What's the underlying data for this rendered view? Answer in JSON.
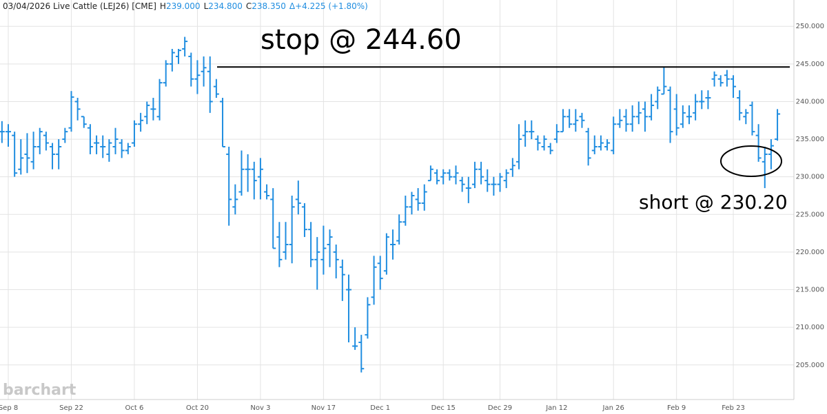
{
  "chart_data": {
    "type": "ohlc",
    "header": {
      "title": "03/04/2026 Live Cattle (LEJ26) [CME]",
      "items": [
        {
          "key": "H",
          "value": "239.000"
        },
        {
          "key": "L",
          "value": "234.800"
        },
        {
          "key": "C",
          "value": "238.350"
        }
      ],
      "change": "Δ+4.225 (+1.80%)"
    },
    "watermark": "barchart",
    "annotations": {
      "stop_text": "stop @ 244.60",
      "stop_level": 244.6,
      "short_text": "short @ 230.20"
    },
    "color": "#1f8de0",
    "ylim": [
      200.4,
      253.5
    ],
    "yticks": [
      {
        "value": 205,
        "label": "205.000"
      },
      {
        "value": 210,
        "label": "210.000"
      },
      {
        "value": 215,
        "label": "215.000"
      },
      {
        "value": 220,
        "label": "220.000"
      },
      {
        "value": 225,
        "label": "225.000"
      },
      {
        "value": 230,
        "label": "230.000"
      },
      {
        "value": 235,
        "label": "235.000"
      },
      {
        "value": 240,
        "label": "240.000"
      },
      {
        "value": 245,
        "label": "245.000"
      },
      {
        "value": 250,
        "label": "250.000"
      }
    ],
    "grid": true,
    "categories": [
      null,
      "Sep 8",
      null,
      null,
      null,
      null,
      null,
      null,
      null,
      null,
      null,
      "Sep 22",
      null,
      null,
      null,
      null,
      null,
      null,
      null,
      null,
      null,
      "Oct 6",
      null,
      null,
      null,
      null,
      null,
      null,
      null,
      null,
      null,
      "Oct 20",
      null,
      null,
      null,
      null,
      null,
      null,
      null,
      null,
      null,
      "Nov 3",
      null,
      null,
      null,
      null,
      null,
      null,
      null,
      null,
      null,
      "Nov 17",
      null,
      null,
      null,
      null,
      null,
      null,
      null,
      null,
      "Dec 1",
      null,
      null,
      null,
      null,
      null,
      null,
      null,
      null,
      null,
      "Dec 15",
      null,
      null,
      null,
      null,
      null,
      null,
      null,
      null,
      "Dec 29",
      null,
      null,
      null,
      null,
      null,
      null,
      null,
      null,
      "Jan 12",
      null,
      null,
      null,
      null,
      null,
      null,
      null,
      null,
      "Jan 26",
      null,
      null,
      null,
      null,
      null,
      null,
      null,
      null,
      null,
      "Feb 9",
      null,
      null,
      null,
      null,
      null,
      null,
      null,
      null,
      "Feb 23",
      null,
      null,
      null,
      null,
      null,
      null,
      null
    ],
    "open": [
      236,
      236,
      235.5,
      231,
      233,
      232,
      234,
      235.5,
      234,
      233,
      235,
      236.5,
      240,
      238,
      236.5,
      234.5,
      234,
      233,
      234,
      234.5,
      233.5,
      234.5,
      237,
      238,
      239,
      238,
      242.5,
      245,
      246,
      247,
      246,
      243,
      244,
      244,
      242,
      240,
      233,
      226,
      228,
      231,
      231,
      230,
      228,
      227,
      222,
      220,
      221,
      227,
      226,
      223,
      219,
      219,
      221,
      220,
      218,
      215,
      207.5,
      208,
      209,
      214,
      218.5,
      217.5,
      221,
      221.5,
      224,
      226,
      227,
      226.5,
      229.5,
      230.5,
      230,
      230.5,
      230,
      229.5,
      228.5,
      229,
      231,
      229.5,
      229,
      229,
      229.5,
      231,
      232,
      235.5,
      236,
      235,
      234,
      234,
      235,
      236,
      238,
      237,
      238,
      236,
      233.5,
      234,
      234,
      233.5,
      237,
      238,
      237,
      238,
      239,
      238,
      240,
      241,
      241.5,
      239,
      237,
      238,
      238.5,
      240,
      240.5,
      243,
      243,
      243.5,
      243,
      240.5,
      238,
      239.5,
      235.5,
      232,
      233,
      235
    ],
    "high": [
      237.4,
      237,
      236,
      235,
      235.8,
      236,
      236.5,
      236,
      234.5,
      235,
      236.5,
      241.4,
      240.5,
      238,
      237,
      235.5,
      235.5,
      235,
      236.5,
      235,
      234.5,
      237.5,
      238.5,
      240,
      240.5,
      243,
      245.5,
      247,
      247,
      248.6,
      246.5,
      245.5,
      246,
      246,
      243,
      240.5,
      234,
      229,
      233.5,
      233,
      232,
      232.5,
      229,
      228.5,
      224,
      224,
      227.5,
      229.5,
      226.5,
      224,
      222,
      223.5,
      223,
      221,
      219,
      217,
      210,
      209,
      214,
      219.5,
      219.5,
      222.5,
      223,
      225,
      227.5,
      228,
      228.5,
      229,
      231.5,
      231,
      231,
      231,
      231.5,
      230,
      230,
      232,
      232,
      231,
      230,
      230.5,
      231,
      232.5,
      237,
      237.5,
      237.5,
      235.5,
      235.5,
      234.5,
      237,
      239,
      239,
      239,
      238.5,
      236.5,
      235.5,
      235.5,
      235,
      238,
      239,
      239,
      239.5,
      240,
      240,
      241,
      242,
      244.6,
      242,
      241,
      239.5,
      239.5,
      241,
      241.5,
      241.5,
      244,
      243.5,
      244.2,
      243.5,
      241.5,
      239,
      240,
      237,
      234,
      235,
      239
    ],
    "low": [
      234.5,
      234,
      230,
      230.3,
      230.5,
      231,
      233,
      233.5,
      231,
      231,
      234.5,
      236,
      237.5,
      236.5,
      233,
      233,
      232.5,
      232,
      233,
      232.5,
      233,
      234,
      236,
      237,
      237.5,
      237.5,
      242,
      244,
      245,
      246,
      242,
      241,
      242,
      238.5,
      240.5,
      234,
      223.5,
      225,
      227.5,
      228,
      227,
      227,
      227,
      220.5,
      218,
      219,
      218.5,
      225,
      222,
      218,
      215,
      217,
      218,
      216.5,
      213.5,
      208,
      207,
      204,
      208.5,
      213,
      215,
      217,
      219,
      221,
      223.5,
      225,
      225.5,
      225.5,
      229.5,
      229,
      229,
      229.5,
      229,
      228,
      226.5,
      228.5,
      229,
      228,
      227.5,
      228,
      228.5,
      230,
      231,
      234,
      235,
      233.5,
      233.5,
      233,
      234.5,
      236,
      236.5,
      236,
      236.5,
      231.5,
      233,
      233.5,
      233.5,
      233,
      236.5,
      236,
      236,
      237,
      236,
      237.5,
      239,
      241,
      234.5,
      235.5,
      236.5,
      237,
      237.5,
      239,
      239,
      242,
      242,
      242,
      240.5,
      237.5,
      237,
      235.5,
      232,
      228.5,
      231,
      234.8
    ],
    "close": [
      236,
      236,
      230.5,
      232.5,
      232.5,
      234,
      236,
      234.5,
      233,
      234,
      236,
      240.6,
      239,
      237,
      234,
      234.5,
      234,
      234.5,
      235,
      233.5,
      234,
      237,
      237.5,
      239.5,
      239,
      242.5,
      245,
      246.5,
      246.8,
      248,
      243,
      243.5,
      244.5,
      240,
      241,
      234,
      227,
      227,
      231,
      231,
      229.5,
      231,
      227.5,
      220.5,
      219,
      221,
      226,
      226.5,
      223,
      219,
      220,
      220.5,
      222,
      219,
      217,
      215,
      207.5,
      204.5,
      213,
      218,
      216.5,
      222,
      221,
      224,
      226,
      227.5,
      226.5,
      228,
      231,
      229.5,
      230.5,
      230,
      230.5,
      229,
      228.5,
      231,
      230,
      229,
      229,
      230,
      230.5,
      231.5,
      235,
      236,
      236,
      234.5,
      235,
      233.5,
      236,
      238,
      237,
      237.5,
      237.5,
      232.5,
      234,
      234.5,
      234.5,
      237,
      237.5,
      237,
      238,
      238.5,
      238,
      239.5,
      241.5,
      242,
      236,
      236.5,
      238.5,
      238,
      240,
      240,
      240.5,
      243.5,
      242.5,
      243,
      242,
      238.5,
      238.5,
      236,
      232.5,
      233,
      234.125,
      238.35
    ]
  }
}
